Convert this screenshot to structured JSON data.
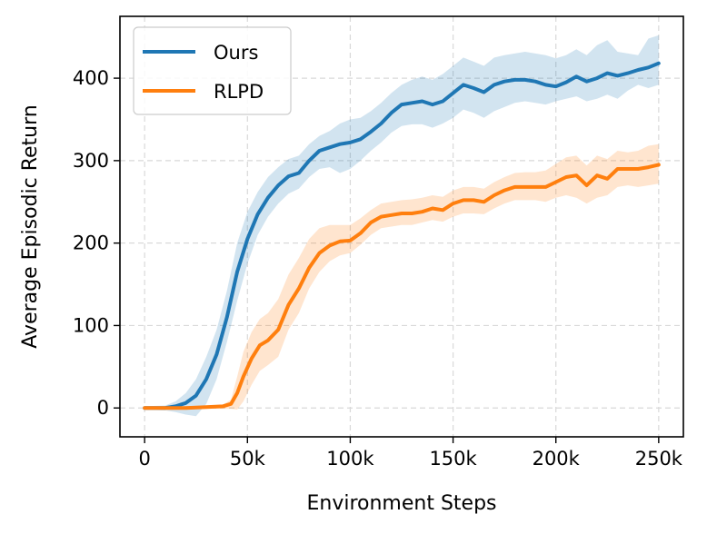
{
  "chart_data": {
    "type": "line",
    "title": "",
    "xlabel": "Environment Steps",
    "ylabel": "Average Episodic Return",
    "xlim": [
      -12000,
      262000
    ],
    "ylim": [
      -35,
      475
    ],
    "xticks": [
      0,
      50000,
      100000,
      150000,
      200000,
      250000
    ],
    "xtick_labels": [
      "0",
      "50k",
      "100k",
      "150k",
      "200k",
      "250k"
    ],
    "yticks": [
      0,
      100,
      200,
      300,
      400
    ],
    "ytick_labels": [
      "0",
      "100",
      "200",
      "300",
      "400"
    ],
    "grid": true,
    "legend_position": "top-left",
    "series": [
      {
        "name": "Ours",
        "color": "#1f77b4",
        "band_color": "#1f77b4",
        "points": [
          [
            0,
            0
          ],
          [
            10000,
            0
          ],
          [
            15000,
            2
          ],
          [
            20000,
            6
          ],
          [
            25000,
            15
          ],
          [
            30000,
            35
          ],
          [
            35000,
            65
          ],
          [
            40000,
            110
          ],
          [
            45000,
            165
          ],
          [
            50000,
            205
          ],
          [
            55000,
            235
          ],
          [
            60000,
            255
          ],
          [
            65000,
            270
          ],
          [
            70000,
            281
          ],
          [
            75000,
            285
          ],
          [
            80000,
            300
          ],
          [
            85000,
            312
          ],
          [
            90000,
            316
          ],
          [
            95000,
            320
          ],
          [
            100000,
            322
          ],
          [
            105000,
            326
          ],
          [
            110000,
            335
          ],
          [
            115000,
            345
          ],
          [
            120000,
            358
          ],
          [
            125000,
            368
          ],
          [
            130000,
            370
          ],
          [
            135000,
            372
          ],
          [
            140000,
            368
          ],
          [
            145000,
            372
          ],
          [
            150000,
            382
          ],
          [
            155000,
            392
          ],
          [
            160000,
            388
          ],
          [
            165000,
            383
          ],
          [
            170000,
            392
          ],
          [
            175000,
            396
          ],
          [
            180000,
            398
          ],
          [
            185000,
            398
          ],
          [
            190000,
            396
          ],
          [
            195000,
            392
          ],
          [
            200000,
            390
          ],
          [
            205000,
            395
          ],
          [
            210000,
            402
          ],
          [
            215000,
            396
          ],
          [
            220000,
            400
          ],
          [
            225000,
            406
          ],
          [
            230000,
            403
          ],
          [
            235000,
            406
          ],
          [
            240000,
            410
          ],
          [
            245000,
            413
          ],
          [
            250000,
            418
          ]
        ],
        "lower": [
          [
            0,
            -2
          ],
          [
            10000,
            -3
          ],
          [
            15000,
            -5
          ],
          [
            20000,
            -8
          ],
          [
            25000,
            -10
          ],
          [
            30000,
            5
          ],
          [
            35000,
            35
          ],
          [
            40000,
            80
          ],
          [
            45000,
            130
          ],
          [
            50000,
            175
          ],
          [
            55000,
            210
          ],
          [
            60000,
            232
          ],
          [
            65000,
            248
          ],
          [
            70000,
            260
          ],
          [
            75000,
            266
          ],
          [
            80000,
            280
          ],
          [
            85000,
            290
          ],
          [
            90000,
            292
          ],
          [
            95000,
            285
          ],
          [
            100000,
            290
          ],
          [
            105000,
            300
          ],
          [
            110000,
            312
          ],
          [
            115000,
            322
          ],
          [
            120000,
            334
          ],
          [
            125000,
            342
          ],
          [
            130000,
            344
          ],
          [
            135000,
            344
          ],
          [
            140000,
            340
          ],
          [
            145000,
            345
          ],
          [
            150000,
            352
          ],
          [
            155000,
            362
          ],
          [
            160000,
            358
          ],
          [
            165000,
            352
          ],
          [
            170000,
            360
          ],
          [
            175000,
            365
          ],
          [
            180000,
            370
          ],
          [
            185000,
            372
          ],
          [
            190000,
            370
          ],
          [
            195000,
            368
          ],
          [
            200000,
            372
          ],
          [
            205000,
            375
          ],
          [
            210000,
            378
          ],
          [
            215000,
            372
          ],
          [
            220000,
            375
          ],
          [
            225000,
            380
          ],
          [
            230000,
            375
          ],
          [
            235000,
            385
          ],
          [
            240000,
            392
          ],
          [
            245000,
            388
          ],
          [
            250000,
            392
          ]
        ],
        "upper": [
          [
            0,
            2
          ],
          [
            10000,
            3
          ],
          [
            15000,
            8
          ],
          [
            20000,
            18
          ],
          [
            25000,
            35
          ],
          [
            30000,
            62
          ],
          [
            35000,
            95
          ],
          [
            40000,
            142
          ],
          [
            45000,
            200
          ],
          [
            50000,
            238
          ],
          [
            55000,
            262
          ],
          [
            60000,
            280
          ],
          [
            65000,
            292
          ],
          [
            70000,
            302
          ],
          [
            75000,
            306
          ],
          [
            80000,
            320
          ],
          [
            85000,
            330
          ],
          [
            90000,
            336
          ],
          [
            95000,
            345
          ],
          [
            100000,
            350
          ],
          [
            105000,
            352
          ],
          [
            110000,
            360
          ],
          [
            115000,
            370
          ],
          [
            120000,
            382
          ],
          [
            125000,
            392
          ],
          [
            130000,
            398
          ],
          [
            135000,
            402
          ],
          [
            140000,
            398
          ],
          [
            145000,
            405
          ],
          [
            150000,
            415
          ],
          [
            155000,
            425
          ],
          [
            160000,
            420
          ],
          [
            165000,
            415
          ],
          [
            170000,
            425
          ],
          [
            175000,
            428
          ],
          [
            180000,
            430
          ],
          [
            185000,
            432
          ],
          [
            190000,
            430
          ],
          [
            195000,
            428
          ],
          [
            200000,
            424
          ],
          [
            205000,
            428
          ],
          [
            210000,
            435
          ],
          [
            215000,
            428
          ],
          [
            220000,
            440
          ],
          [
            225000,
            446
          ],
          [
            230000,
            432
          ],
          [
            235000,
            430
          ],
          [
            240000,
            428
          ],
          [
            245000,
            448
          ],
          [
            250000,
            452
          ]
        ]
      },
      {
        "name": "RLPD",
        "color": "#ff7f0e",
        "band_color": "#ff7f0e",
        "points": [
          [
            0,
            0
          ],
          [
            20000,
            0
          ],
          [
            30000,
            1
          ],
          [
            38000,
            2
          ],
          [
            42000,
            5
          ],
          [
            45000,
            18
          ],
          [
            48000,
            38
          ],
          [
            52000,
            60
          ],
          [
            56000,
            76
          ],
          [
            60000,
            82
          ],
          [
            65000,
            95
          ],
          [
            70000,
            125
          ],
          [
            75000,
            145
          ],
          [
            80000,
            170
          ],
          [
            85000,
            188
          ],
          [
            90000,
            197
          ],
          [
            95000,
            202
          ],
          [
            100000,
            203
          ],
          [
            105000,
            212
          ],
          [
            110000,
            225
          ],
          [
            115000,
            232
          ],
          [
            120000,
            234
          ],
          [
            125000,
            236
          ],
          [
            130000,
            236
          ],
          [
            135000,
            238
          ],
          [
            140000,
            242
          ],
          [
            145000,
            240
          ],
          [
            150000,
            248
          ],
          [
            155000,
            252
          ],
          [
            160000,
            252
          ],
          [
            165000,
            250
          ],
          [
            170000,
            258
          ],
          [
            175000,
            264
          ],
          [
            180000,
            268
          ],
          [
            185000,
            268
          ],
          [
            190000,
            268
          ],
          [
            195000,
            268
          ],
          [
            200000,
            274
          ],
          [
            205000,
            280
          ],
          [
            210000,
            282
          ],
          [
            215000,
            270
          ],
          [
            220000,
            282
          ],
          [
            225000,
            278
          ],
          [
            230000,
            290
          ],
          [
            235000,
            290
          ],
          [
            240000,
            290
          ],
          [
            245000,
            292
          ],
          [
            250000,
            295
          ]
        ],
        "lower": [
          [
            0,
            -1
          ],
          [
            20000,
            -1
          ],
          [
            30000,
            -1
          ],
          [
            38000,
            -1
          ],
          [
            42000,
            -1
          ],
          [
            45000,
            -2
          ],
          [
            48000,
            8
          ],
          [
            52000,
            28
          ],
          [
            56000,
            45
          ],
          [
            60000,
            52
          ],
          [
            65000,
            62
          ],
          [
            70000,
            95
          ],
          [
            75000,
            115
          ],
          [
            80000,
            145
          ],
          [
            85000,
            165
          ],
          [
            90000,
            178
          ],
          [
            95000,
            185
          ],
          [
            100000,
            188
          ],
          [
            105000,
            198
          ],
          [
            110000,
            210
          ],
          [
            115000,
            218
          ],
          [
            120000,
            220
          ],
          [
            125000,
            222
          ],
          [
            130000,
            222
          ],
          [
            135000,
            225
          ],
          [
            140000,
            228
          ],
          [
            145000,
            226
          ],
          [
            150000,
            232
          ],
          [
            155000,
            236
          ],
          [
            160000,
            236
          ],
          [
            165000,
            235
          ],
          [
            170000,
            242
          ],
          [
            175000,
            248
          ],
          [
            180000,
            252
          ],
          [
            185000,
            252
          ],
          [
            190000,
            252
          ],
          [
            195000,
            250
          ],
          [
            200000,
            255
          ],
          [
            205000,
            258
          ],
          [
            210000,
            255
          ],
          [
            215000,
            248
          ],
          [
            220000,
            255
          ],
          [
            225000,
            258
          ],
          [
            230000,
            268
          ],
          [
            235000,
            270
          ],
          [
            240000,
            268
          ],
          [
            245000,
            270
          ],
          [
            250000,
            272
          ]
        ],
        "upper": [
          [
            0,
            1
          ],
          [
            20000,
            2
          ],
          [
            30000,
            3
          ],
          [
            38000,
            4
          ],
          [
            42000,
            10
          ],
          [
            45000,
            38
          ],
          [
            48000,
            68
          ],
          [
            52000,
            92
          ],
          [
            56000,
            108
          ],
          [
            60000,
            115
          ],
          [
            65000,
            132
          ],
          [
            70000,
            162
          ],
          [
            75000,
            182
          ],
          [
            80000,
            205
          ],
          [
            85000,
            218
          ],
          [
            90000,
            222
          ],
          [
            95000,
            222
          ],
          [
            100000,
            222
          ],
          [
            105000,
            230
          ],
          [
            110000,
            240
          ],
          [
            115000,
            248
          ],
          [
            120000,
            250
          ],
          [
            125000,
            252
          ],
          [
            130000,
            253
          ],
          [
            135000,
            255
          ],
          [
            140000,
            258
          ],
          [
            145000,
            256
          ],
          [
            150000,
            264
          ],
          [
            155000,
            268
          ],
          [
            160000,
            268
          ],
          [
            165000,
            266
          ],
          [
            170000,
            274
          ],
          [
            175000,
            280
          ],
          [
            180000,
            285
          ],
          [
            185000,
            286
          ],
          [
            190000,
            286
          ],
          [
            195000,
            288
          ],
          [
            200000,
            296
          ],
          [
            205000,
            304
          ],
          [
            210000,
            306
          ],
          [
            215000,
            294
          ],
          [
            220000,
            306
          ],
          [
            225000,
            302
          ],
          [
            230000,
            312
          ],
          [
            235000,
            310
          ],
          [
            240000,
            312
          ],
          [
            245000,
            318
          ],
          [
            250000,
            320
          ]
        ]
      }
    ]
  }
}
